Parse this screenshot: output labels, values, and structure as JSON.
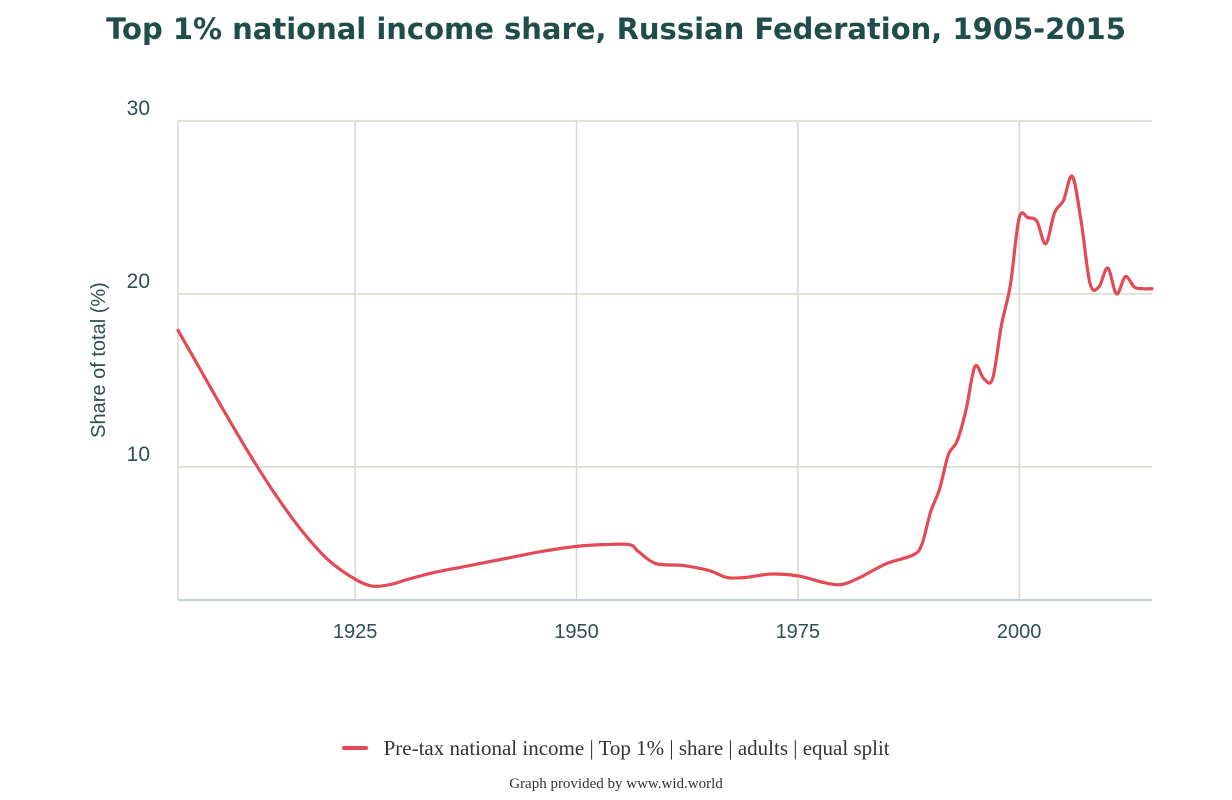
{
  "colors": {
    "series": "#e34a55",
    "grid": "#d8d8cc",
    "axis": "#b0c4d4",
    "title": "#1f4d4a"
  },
  "footer": "Graph provided by www.wid.world",
  "chart_data": {
    "type": "line",
    "title": "Top 1% national income share, Russian Federation, 1905-2015",
    "xlabel": "",
    "ylabel": "Share of total (%)",
    "xlim": [
      1905,
      2015
    ],
    "ylim": [
      2.3,
      30
    ],
    "x_ticks": [
      1925,
      1950,
      1975,
      2000
    ],
    "y_ticks": [
      10,
      20,
      30
    ],
    "grid": true,
    "legend_position": "bottom-center",
    "series": [
      {
        "name": "Pre-tax national income | Top 1% | share | adults | equal split",
        "x": [
          1905,
          1907,
          1910,
          1913,
          1916,
          1919,
          1922,
          1925,
          1927,
          1929,
          1931,
          1934,
          1937,
          1940,
          1943,
          1946,
          1950,
          1953,
          1956,
          1957,
          1959,
          1962,
          1965,
          1967,
          1969,
          1972,
          1975,
          1978,
          1980,
          1982,
          1985,
          1988,
          1989,
          1990,
          1991,
          1992,
          1993,
          1994,
          1995,
          1996,
          1997,
          1998,
          1999,
          2000,
          2001,
          2002,
          2003,
          2004,
          2005,
          2006,
          2007,
          2008,
          2009,
          2010,
          2011,
          2012,
          2013,
          2014,
          2015
        ],
        "y": [
          17.9,
          16.1,
          13.4,
          10.8,
          8.4,
          6.3,
          4.6,
          3.5,
          3.1,
          3.2,
          3.5,
          3.9,
          4.2,
          4.5,
          4.8,
          5.1,
          5.4,
          5.5,
          5.5,
          5.1,
          4.4,
          4.3,
          4.0,
          3.6,
          3.6,
          3.8,
          3.7,
          3.3,
          3.2,
          3.6,
          4.4,
          4.9,
          5.5,
          7.4,
          8.7,
          10.7,
          11.5,
          13.3,
          15.8,
          15.1,
          15.1,
          18.2,
          20.5,
          24.4,
          24.4,
          24.2,
          22.9,
          24.7,
          25.4,
          26.8,
          24.2,
          20.6,
          20.4,
          21.5,
          20.0,
          21.0,
          20.4,
          20.3,
          20.3
        ]
      }
    ]
  }
}
